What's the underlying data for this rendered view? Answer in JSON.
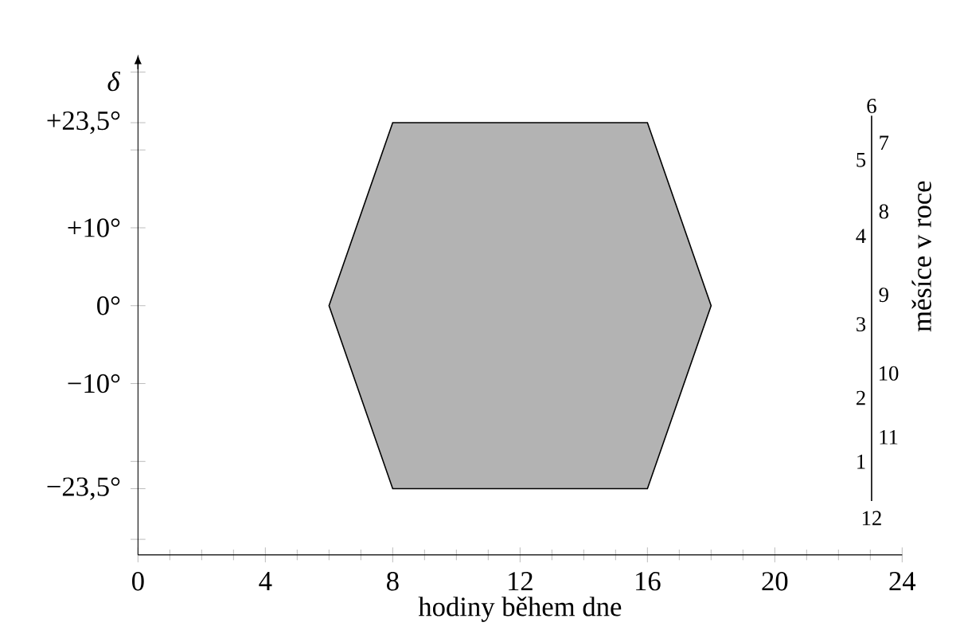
{
  "chart_data": {
    "type": "area",
    "xlabel": "hodiny během dne",
    "ylabel": "δ",
    "y2label": "měsíce v roce",
    "series": [
      {
        "color": "#b3b3b3",
        "x": [
          6,
          8,
          16,
          18,
          16,
          8,
          6
        ],
        "values": [
          0,
          23.5,
          23.5,
          0,
          -23.5,
          -23.5,
          0
        ]
      }
    ],
    "xlim": [
      0,
      24
    ],
    "xticks": [
      0,
      4,
      8,
      12,
      16,
      20,
      24
    ],
    "ylim": [
      -32,
      31
    ],
    "yticks": [
      {
        "value": -30,
        "label": null
      },
      {
        "value": -23.5,
        "label": "−23,5°"
      },
      {
        "value": -20,
        "label": null
      },
      {
        "value": -10,
        "label": "−10°"
      },
      {
        "value": 0,
        "label": "0°"
      },
      {
        "value": 10,
        "label": "+10°"
      },
      {
        "value": 20,
        "label": null
      },
      {
        "value": 23.5,
        "label": "+23,5°"
      },
      {
        "value": 30,
        "label": null
      }
    ],
    "annotations": [
      "6",
      "5",
      "7",
      "4",
      "8",
      "9",
      "3",
      "10",
      "2",
      "11",
      "1",
      "12"
    ]
  }
}
